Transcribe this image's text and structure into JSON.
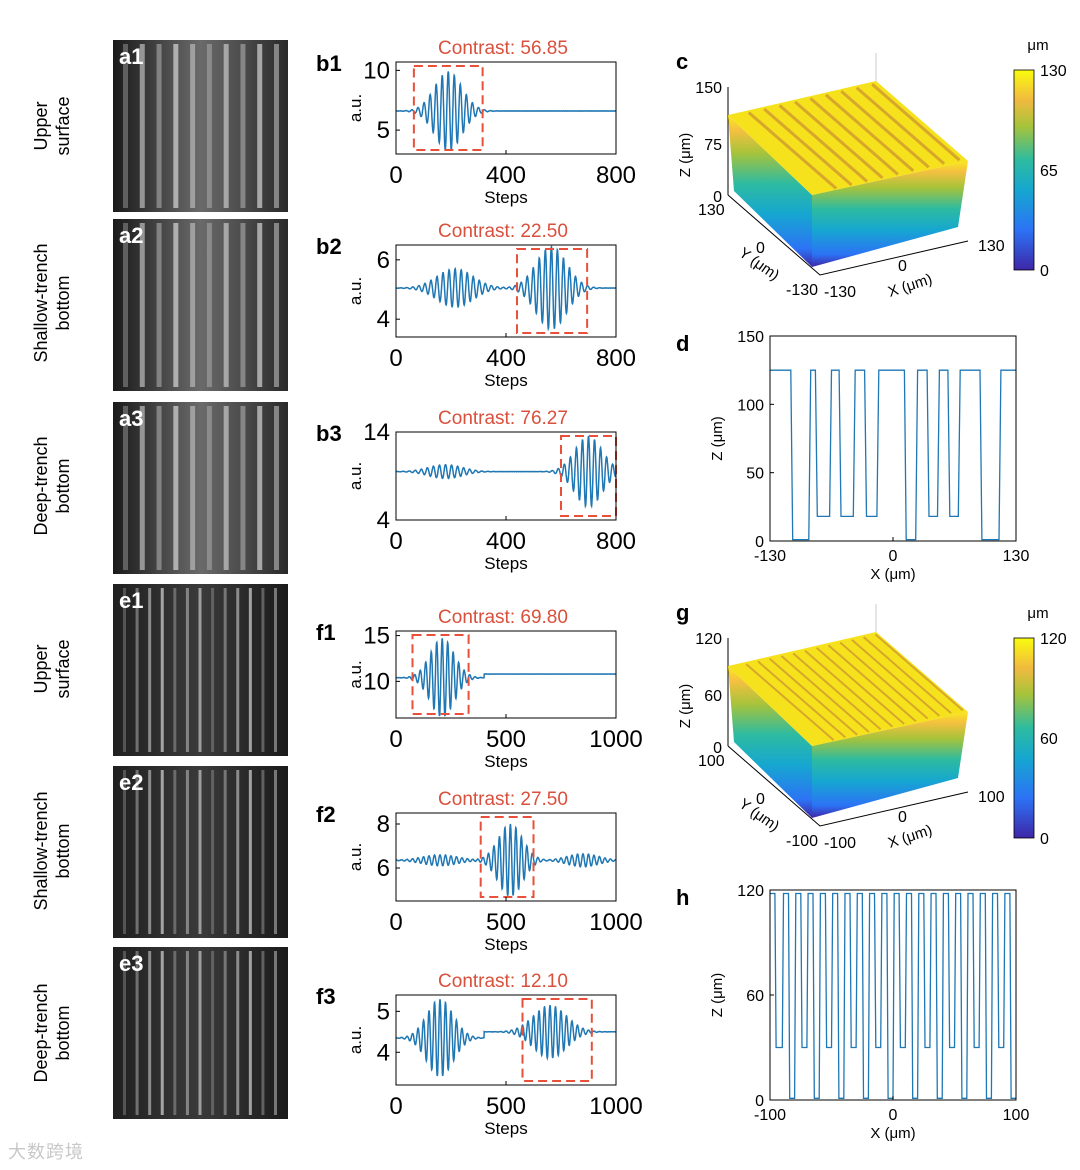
{
  "row_labels": [
    [
      "Upper",
      "surface"
    ],
    [
      "Shallow-trench",
      "bottom"
    ],
    [
      "Deep-trench",
      "bottom"
    ],
    [
      "Upper",
      "surface"
    ],
    [
      "Shallow-trench",
      "bottom"
    ],
    [
      "Deep-trench",
      "bottom"
    ]
  ],
  "image_panels": [
    "a1",
    "a2",
    "a3",
    "e1",
    "e2",
    "e3"
  ],
  "colors": {
    "line": "#1f77b4",
    "box": "#e8503a",
    "contrast_text": "#d9503c"
  },
  "watermark": "大数跨境",
  "chart_data": [
    {
      "id": "b1",
      "type": "line",
      "title": "Contrast: 56.85",
      "xlabel": "Steps",
      "ylabel": "a.u.",
      "xlim": [
        0,
        800
      ],
      "ylim": [
        3,
        10.7
      ],
      "xticks": [
        0,
        400,
        800
      ],
      "yticks": [
        5,
        10
      ],
      "baseline": 6.6,
      "packets": [
        {
          "center": 190,
          "amp": 3.3,
          "width": 50
        }
      ],
      "period": 22,
      "highlight_x": [
        65,
        315
      ]
    },
    {
      "id": "b2",
      "type": "line",
      "title": "Contrast: 22.50",
      "xlabel": "Steps",
      "ylabel": "a.u.",
      "xlim": [
        0,
        800
      ],
      "ylim": [
        3.4,
        6.5
      ],
      "xticks": [
        0,
        400,
        800
      ],
      "yticks": [
        4,
        6
      ],
      "baseline": 5.05,
      "packets": [
        {
          "center": 215,
          "amp": 0.65,
          "width": 65
        },
        {
          "center": 565,
          "amp": 1.4,
          "width": 55
        }
      ],
      "period": 22,
      "highlight_x": [
        440,
        695
      ]
    },
    {
      "id": "b3",
      "type": "line",
      "title": "Contrast: 76.27",
      "xlabel": "Steps",
      "ylabel": "a.u.",
      "xlim": [
        0,
        800
      ],
      "ylim": [
        4,
        14
      ],
      "xticks": [
        0,
        400,
        800
      ],
      "yticks": [
        4,
        14
      ],
      "baseline": 9.5,
      "packets": [
        {
          "center": 180,
          "amp": 0.8,
          "width": 60
        },
        {
          "center": 700,
          "amp": 4,
          "width": 50
        }
      ],
      "period": 22,
      "highlight_x": [
        600,
        800
      ]
    },
    {
      "id": "f1",
      "type": "line",
      "title": "Contrast: 69.80",
      "xlabel": "Steps",
      "ylabel": "a.u.",
      "xlim": [
        0,
        1000
      ],
      "ylim": [
        6,
        15.5
      ],
      "xticks": [
        0,
        500,
        1000
      ],
      "yticks": [
        10,
        15
      ],
      "baseline": 10.4,
      "packets": [
        {
          "center": 210,
          "amp": 4.3,
          "width": 55
        }
      ],
      "period": 25,
      "step_at": 400,
      "step_to": 10.8,
      "highlight_x": [
        75,
        330
      ]
    },
    {
      "id": "f2",
      "type": "line",
      "title": "Contrast: 27.50",
      "xlabel": "Steps",
      "ylabel": "a.u.",
      "xlim": [
        0,
        1000
      ],
      "ylim": [
        4.5,
        8.5
      ],
      "xticks": [
        0,
        500,
        1000
      ],
      "yticks": [
        6,
        8
      ],
      "baseline": 6.35,
      "packets": [
        {
          "center": 520,
          "amp": 1.65,
          "width": 55
        },
        {
          "center": 200,
          "amp": 0.25,
          "width": 80
        },
        {
          "center": 850,
          "amp": 0.3,
          "width": 70
        }
      ],
      "period": 25,
      "highlight_x": [
        385,
        625
      ]
    },
    {
      "id": "f3",
      "type": "line",
      "title": "Contrast: 12.10",
      "xlabel": "Steps",
      "ylabel": "a.u.",
      "xlim": [
        0,
        1000
      ],
      "ylim": [
        3.2,
        5.4
      ],
      "xticks": [
        0,
        500,
        1000
      ],
      "yticks": [
        4,
        5
      ],
      "baseline": 4.35,
      "packets": [
        {
          "center": 200,
          "amp": 0.95,
          "width": 60
        },
        {
          "center": 700,
          "amp": 0.65,
          "width": 75
        }
      ],
      "period": 25,
      "step_at": 400,
      "step_to": 4.5,
      "highlight_x": [
        575,
        890
      ]
    },
    {
      "id": "c",
      "type": "surface",
      "zlabel": "Z (μm)",
      "ylabel": "Y (μm)",
      "xlabel": "X (μm)",
      "zticks": [
        0,
        75,
        150
      ],
      "yticks": [
        130,
        0,
        -130
      ],
      "xticks": [
        -130,
        0,
        130
      ],
      "colorbar": {
        "unit": "μm",
        "ticks": [
          0,
          65,
          130
        ],
        "range": [
          0,
          130
        ]
      }
    },
    {
      "id": "d",
      "type": "line",
      "xlabel": "X (μm)",
      "ylabel": "Z (μm)",
      "xlim": [
        -130,
        130
      ],
      "ylim": [
        0,
        150
      ],
      "xticks": [
        -130,
        0,
        130
      ],
      "yticks": [
        0,
        50,
        100,
        150
      ],
      "x": [
        -130,
        -108,
        -106,
        -89,
        -87,
        -82,
        -80,
        -67,
        -65,
        -57,
        -55,
        -42,
        -40,
        -30,
        -28,
        -17,
        -15,
        12,
        14,
        24,
        26,
        36,
        38,
        47,
        49,
        58,
        60,
        69,
        71,
        92,
        94,
        112,
        114,
        130
      ],
      "y": [
        125,
        125,
        1,
        1,
        125,
        125,
        18,
        18,
        125,
        125,
        18,
        18,
        125,
        125,
        18,
        18,
        125,
        125,
        1,
        1,
        125,
        125,
        18,
        18,
        125,
        125,
        18,
        18,
        125,
        125,
        1,
        1,
        125,
        125
      ]
    },
    {
      "id": "g",
      "type": "surface",
      "zlabel": "Z (μm)",
      "ylabel": "Y (μm)",
      "xlabel": "X (μm)",
      "zticks": [
        0,
        60,
        120
      ],
      "yticks": [
        100,
        0,
        -100
      ],
      "xticks": [
        -100,
        0,
        100
      ],
      "colorbar": {
        "unit": "μm",
        "ticks": [
          0,
          60,
          120
        ],
        "range": [
          0,
          120
        ]
      }
    },
    {
      "id": "h",
      "type": "line",
      "xlabel": "X (μm)",
      "ylabel": "Z (μm)",
      "xlim": [
        -100,
        100
      ],
      "ylim": [
        0,
        120
      ],
      "xticks": [
        -100,
        0,
        100
      ],
      "yticks": [
        0,
        60,
        120
      ],
      "x": [
        -100,
        -96,
        -95,
        -90,
        -89,
        -85,
        -84,
        -80,
        -79,
        -75,
        -74,
        -70,
        -69,
        -65,
        -64,
        -60,
        -59,
        -55,
        -54,
        -50,
        -49,
        -45,
        -44,
        -40,
        -39,
        -35,
        -34,
        -30,
        -29,
        -25,
        -24,
        -20,
        -19,
        -15,
        -14,
        -10,
        -9,
        -5,
        -4,
        0,
        1,
        5,
        6,
        10,
        11,
        15,
        16,
        20,
        21,
        25,
        26,
        30,
        31,
        35,
        36,
        40,
        41,
        45,
        46,
        50,
        51,
        55,
        56,
        60,
        61,
        65,
        66,
        70,
        71,
        75,
        76,
        80,
        81,
        85,
        86,
        90,
        91,
        95,
        96,
        100
      ],
      "y": [
        118,
        118,
        30,
        30,
        118,
        118,
        1,
        1,
        118,
        118,
        30,
        30,
        118,
        118,
        1,
        1,
        118,
        118,
        30,
        30,
        118,
        118,
        1,
        1,
        118,
        118,
        30,
        30,
        118,
        118,
        1,
        1,
        118,
        118,
        30,
        30,
        118,
        118,
        1,
        1,
        118,
        118,
        30,
        30,
        118,
        118,
        1,
        1,
        118,
        118,
        30,
        30,
        118,
        118,
        1,
        1,
        118,
        118,
        30,
        30,
        118,
        118,
        1,
        1,
        118,
        118,
        30,
        30,
        118,
        118,
        1,
        1,
        118,
        118,
        30,
        30,
        118,
        118,
        1,
        1
      ]
    }
  ]
}
